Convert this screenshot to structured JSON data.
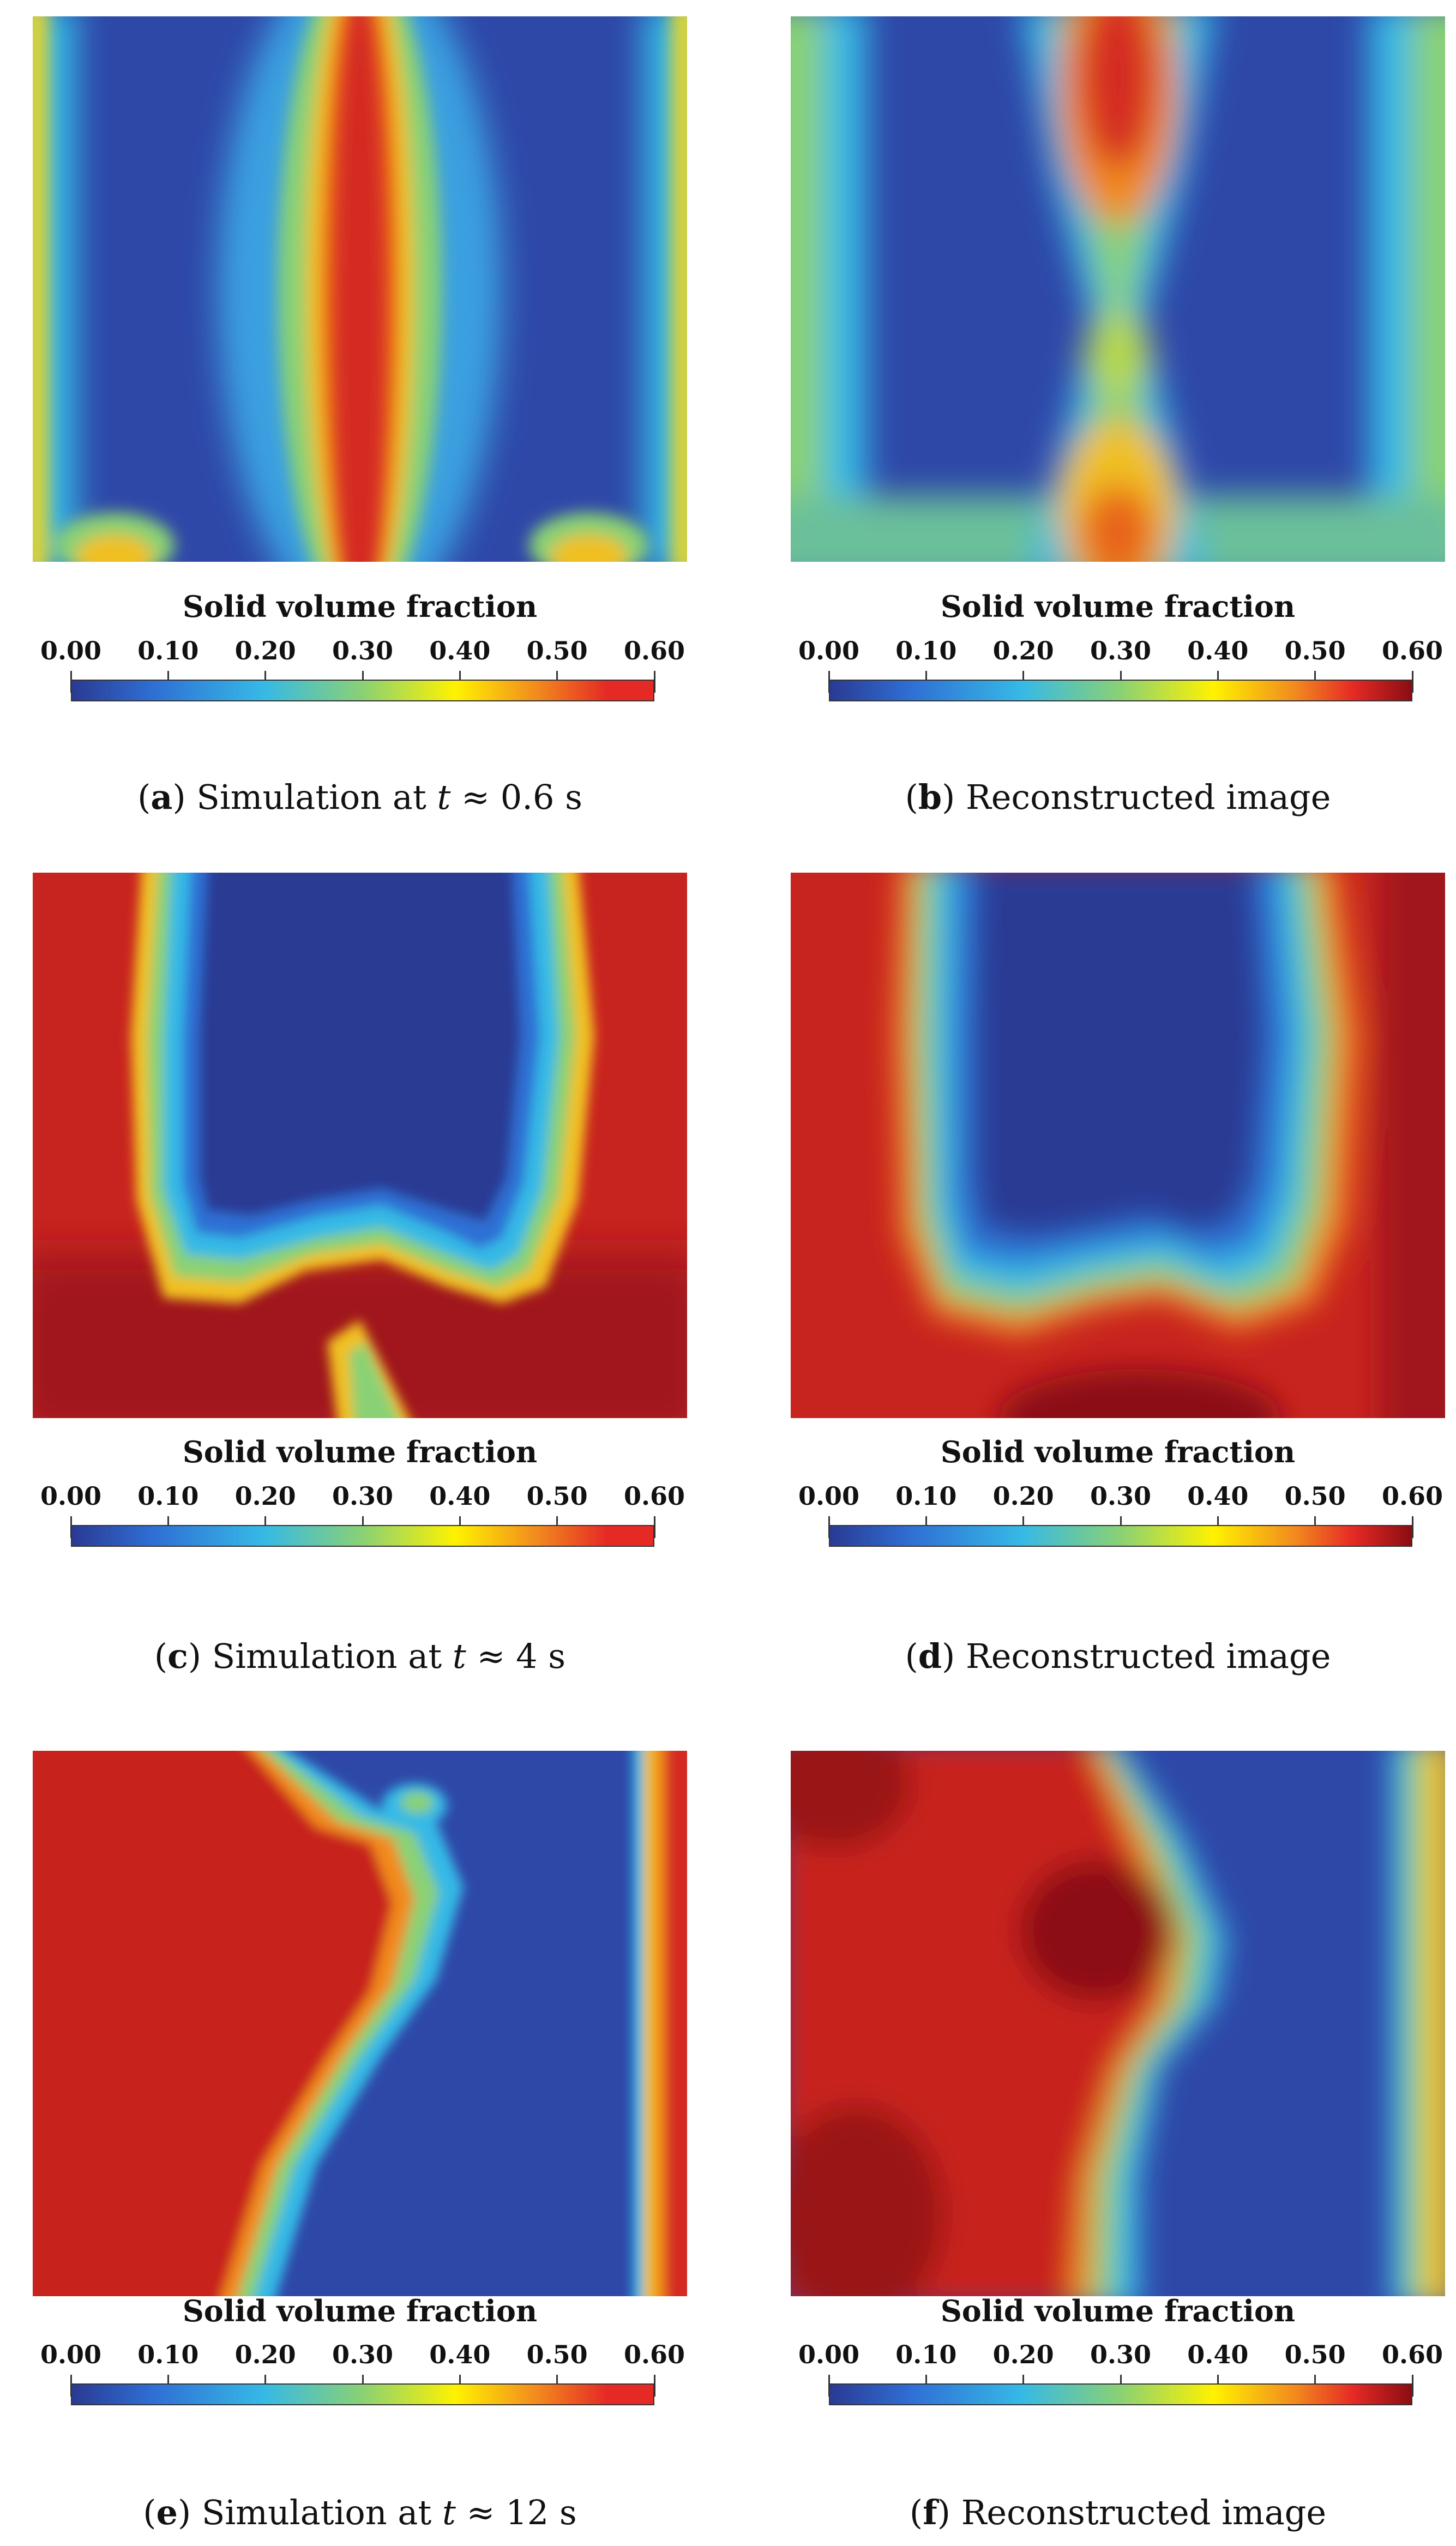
{
  "colorbar": {
    "title": "Solid volume fraction",
    "ticks": [
      "0.00",
      "0.10",
      "0.20",
      "0.30",
      "0.40",
      "0.50",
      "0.60"
    ],
    "range": [
      0.0,
      0.6
    ]
  },
  "colors": {
    "c0": "#2a3a94",
    "c1": "#2f6fd4",
    "c2": "#36b9e6",
    "c3": "#8ad174",
    "c4": "#fff200",
    "c5": "#f28a1e",
    "c6": "#e52a25",
    "c7": "#8c0d12"
  },
  "panels": [
    {
      "id": "a",
      "letter": "a",
      "pre": "Simulation at ",
      "var": "t",
      "post": " ≈ 0.6 s"
    },
    {
      "id": "b",
      "letter": "b",
      "pre": "Reconstructed image",
      "var": "",
      "post": ""
    },
    {
      "id": "c",
      "letter": "c",
      "pre": "Simulation at ",
      "var": "t",
      "post": " ≈ 4 s"
    },
    {
      "id": "d",
      "letter": "d",
      "pre": "Reconstructed image",
      "var": "",
      "post": ""
    },
    {
      "id": "e",
      "letter": "e",
      "pre": "Simulation at ",
      "var": "t",
      "post": " ≈ 12 s"
    },
    {
      "id": "f",
      "letter": "f",
      "pre": "Reconstructed image",
      "var": "",
      "post": ""
    }
  ]
}
